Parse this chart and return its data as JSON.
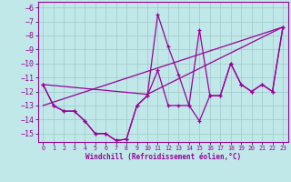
{
  "xlabel": "Windchill (Refroidissement éolien,°C)",
  "xlim": [
    -0.5,
    23.5
  ],
  "ylim": [
    -15.6,
    -5.6
  ],
  "yticks": [
    -6,
    -7,
    -8,
    -9,
    -10,
    -11,
    -12,
    -13,
    -14,
    -15
  ],
  "xticks": [
    0,
    1,
    2,
    3,
    4,
    5,
    6,
    7,
    8,
    9,
    10,
    11,
    12,
    13,
    14,
    15,
    16,
    17,
    18,
    19,
    20,
    21,
    22,
    23
  ],
  "bg_color": "#c0e8e8",
  "grid_color": "#a0c8c8",
  "line_color": "#990099",
  "curve1_x": [
    0,
    1,
    2,
    3,
    4,
    5,
    6,
    7,
    8,
    9,
    10,
    11,
    12,
    13,
    14,
    15,
    16,
    17,
    18,
    19,
    20,
    21,
    22,
    23
  ],
  "curve1_y": [
    -11.5,
    -13.0,
    -13.4,
    -13.4,
    -14.1,
    -15.0,
    -15.0,
    -15.5,
    -15.4,
    -13.0,
    -12.3,
    -6.5,
    -8.8,
    -10.8,
    -13.0,
    -7.6,
    -12.3,
    -12.3,
    -10.0,
    -11.5,
    -12.0,
    -11.5,
    -12.0,
    -7.4
  ],
  "curve2_x": [
    0,
    1,
    2,
    3,
    4,
    5,
    6,
    7,
    8,
    9,
    10,
    11,
    12,
    13,
    14,
    15,
    16,
    17,
    18,
    19,
    20,
    21,
    22,
    23
  ],
  "curve2_y": [
    -11.5,
    -13.0,
    -13.4,
    -13.4,
    -14.1,
    -15.0,
    -15.0,
    -15.5,
    -15.4,
    -13.0,
    -12.3,
    -10.5,
    -13.0,
    -13.0,
    -13.0,
    -14.1,
    -12.3,
    -12.3,
    -10.0,
    -11.5,
    -12.0,
    -11.5,
    -12.0,
    -7.4
  ],
  "trend1_x": [
    0,
    23
  ],
  "trend1_y": [
    -13.0,
    -7.4
  ],
  "trend2_x": [
    0,
    10,
    23
  ],
  "trend2_y": [
    -11.5,
    -12.2,
    -7.4
  ]
}
